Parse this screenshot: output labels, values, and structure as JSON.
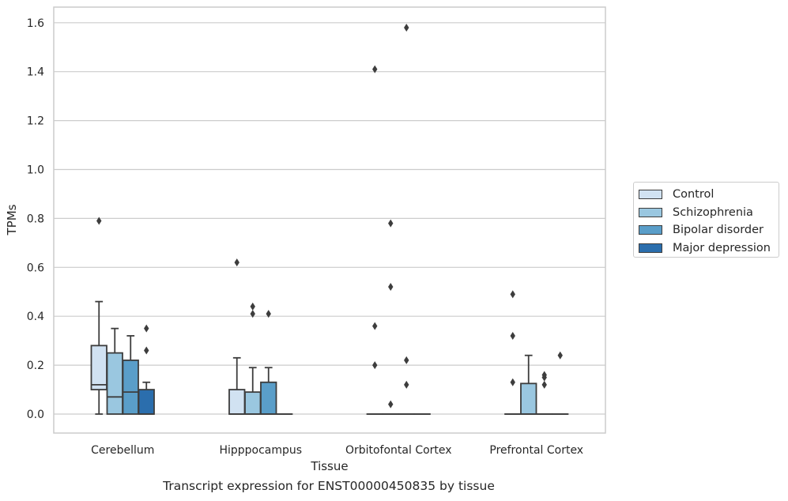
{
  "chart_data": {
    "type": "box",
    "title": "Transcript expression for ENST00000450835 by tissue",
    "xlabel": "Tissue",
    "ylabel": "TPMs",
    "ylim": [
      -0.08,
      1.66
    ],
    "yticks": [
      "0.0",
      "0.2",
      "0.4",
      "0.6",
      "0.8",
      "1.0",
      "1.2",
      "1.4",
      "1.6"
    ],
    "grid": true,
    "legend_position": "right",
    "categories": [
      "Cerebellum",
      "Hipppocampus",
      "Orbitofontal Cortex",
      "Prefrontal Cortex"
    ],
    "series": [
      {
        "name": "Control",
        "color": "#d1e2f2",
        "boxes": [
          {
            "min": 0.0,
            "q1": 0.1,
            "median": 0.12,
            "q3": 0.28,
            "max": 0.46,
            "outliers": [
              0.79
            ]
          },
          {
            "min": 0.0,
            "q1": 0.0,
            "median": 0.0,
            "q3": 0.1,
            "max": 0.23,
            "outliers": [
              0.62
            ]
          },
          {
            "min": 0.0,
            "q1": 0.0,
            "median": 0.0,
            "q3": 0.0,
            "max": 0.0,
            "outliers": [
              0.2,
              0.36,
              1.41
            ]
          },
          {
            "min": 0.0,
            "q1": 0.0,
            "median": 0.0,
            "q3": 0.0,
            "max": 0.0,
            "outliers": [
              0.13,
              0.32,
              0.49
            ]
          }
        ]
      },
      {
        "name": "Schizophrenia",
        "color": "#9ac7e0",
        "boxes": [
          {
            "min": 0.0,
            "q1": 0.0,
            "median": 0.07,
            "q3": 0.25,
            "max": 0.35,
            "outliers": []
          },
          {
            "min": 0.0,
            "q1": 0.0,
            "median": 0.0,
            "q3": 0.09,
            "max": 0.19,
            "outliers": [
              0.41,
              0.44
            ]
          },
          {
            "min": 0.0,
            "q1": 0.0,
            "median": 0.0,
            "q3": 0.0,
            "max": 0.0,
            "outliers": [
              0.04,
              0.52,
              0.78
            ]
          },
          {
            "min": 0.0,
            "q1": 0.0,
            "median": 0.0,
            "q3": 0.125,
            "max": 0.24,
            "outliers": []
          }
        ]
      },
      {
        "name": "Bipolar disorder",
        "color": "#5a9ec9",
        "boxes": [
          {
            "min": 0.0,
            "q1": 0.0,
            "median": 0.09,
            "q3": 0.22,
            "max": 0.32,
            "outliers": []
          },
          {
            "min": 0.0,
            "q1": 0.0,
            "median": 0.0,
            "q3": 0.13,
            "max": 0.19,
            "outliers": [
              0.41
            ]
          },
          {
            "min": 0.0,
            "q1": 0.0,
            "median": 0.0,
            "q3": 0.0,
            "max": 0.0,
            "outliers": [
              0.12,
              0.22,
              1.58
            ]
          },
          {
            "min": 0.0,
            "q1": 0.0,
            "median": 0.0,
            "q3": 0.0,
            "max": 0.0,
            "outliers": [
              0.12,
              0.15,
              0.16
            ]
          }
        ]
      },
      {
        "name": "Major depression",
        "color": "#2b6ead",
        "boxes": [
          {
            "min": 0.0,
            "q1": 0.0,
            "median": 0.0,
            "q3": 0.1,
            "max": 0.13,
            "outliers": [
              0.26,
              0.35
            ]
          },
          {
            "min": 0.0,
            "q1": 0.0,
            "median": 0.0,
            "q3": 0.0,
            "max": 0.0,
            "outliers": []
          },
          {
            "min": 0.0,
            "q1": 0.0,
            "median": 0.0,
            "q3": 0.0,
            "max": 0.0,
            "outliers": []
          },
          {
            "min": 0.0,
            "q1": 0.0,
            "median": 0.0,
            "q3": 0.0,
            "max": 0.0,
            "outliers": [
              0.24
            ]
          }
        ]
      }
    ]
  }
}
